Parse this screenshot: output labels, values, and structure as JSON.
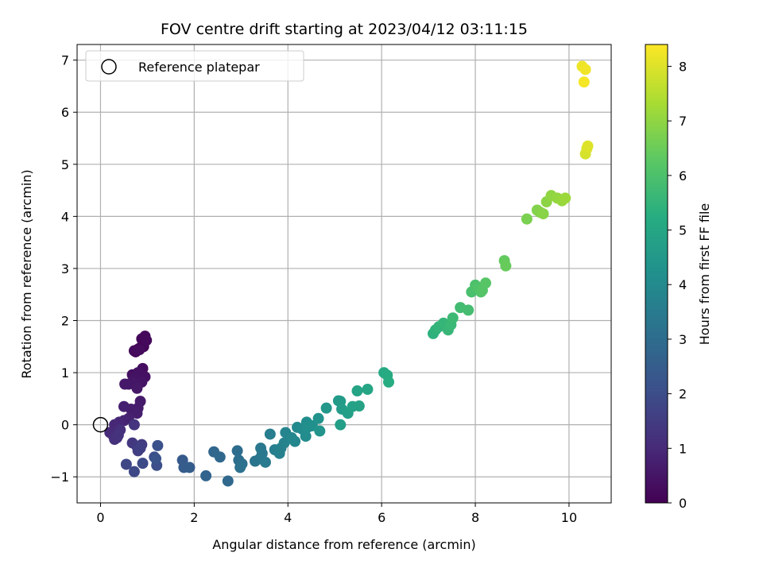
{
  "chart_data": {
    "type": "scatter",
    "title": "FOV centre drift starting at 2023/04/12 03:11:15",
    "xlabel": "Angular distance from reference (arcmin)",
    "ylabel": "Rotation from reference (arcmin)",
    "xlim": [
      -0.5,
      10.9
    ],
    "ylim": [
      -1.5,
      7.3
    ],
    "xticks": [
      0,
      2,
      4,
      6,
      8,
      10
    ],
    "yticks": [
      -1,
      0,
      1,
      2,
      3,
      4,
      5,
      6,
      7
    ],
    "xtick_labels": [
      "0",
      "2",
      "4",
      "6",
      "8",
      "10"
    ],
    "ytick_labels": [
      "−1",
      "0",
      "1",
      "2",
      "3",
      "4",
      "5",
      "6",
      "7"
    ],
    "grid": true,
    "colormap": "viridis",
    "colorbar": {
      "label": "Hours from first FF file",
      "range": [
        0,
        8.4
      ],
      "ticks": [
        0,
        1,
        2,
        3,
        4,
        5,
        6,
        7,
        8
      ],
      "tick_labels": [
        "0",
        "1",
        "2",
        "3",
        "4",
        "5",
        "6",
        "7",
        "8"
      ]
    },
    "legend": {
      "position": "upper-left",
      "entries": [
        {
          "label": "Reference platepar",
          "marker": "open-circle"
        }
      ]
    },
    "reference_point": {
      "x": 0,
      "y": 0
    },
    "points": [
      [
        0.75,
        1.4,
        0.05
      ],
      [
        0.8,
        1.45,
        0.08
      ],
      [
        0.85,
        1.48,
        0.1
      ],
      [
        0.92,
        1.5,
        0.12
      ],
      [
        0.88,
        1.65,
        0.15
      ],
      [
        0.95,
        1.7,
        0.18
      ],
      [
        0.98,
        1.62,
        0.2
      ],
      [
        0.72,
        1.42,
        0.22
      ],
      [
        0.83,
        1.44,
        0.24
      ],
      [
        0.9,
        1.08,
        0.3
      ],
      [
        0.68,
        0.96,
        0.35
      ],
      [
        0.8,
        1.0,
        0.38
      ],
      [
        0.95,
        0.92,
        0.4
      ],
      [
        0.72,
        0.9,
        0.43
      ],
      [
        0.88,
        0.82,
        0.46
      ],
      [
        0.6,
        0.78,
        0.5
      ],
      [
        0.7,
        0.8,
        0.52
      ],
      [
        0.78,
        0.7,
        0.55
      ],
      [
        0.52,
        0.78,
        0.57
      ],
      [
        0.85,
        0.45,
        0.6
      ],
      [
        0.8,
        0.32,
        0.63
      ],
      [
        0.7,
        0.25,
        0.66
      ],
      [
        0.65,
        0.3,
        0.69
      ],
      [
        0.78,
        0.22,
        0.72
      ],
      [
        0.5,
        0.35,
        0.76
      ],
      [
        0.6,
        0.12,
        0.8
      ],
      [
        0.5,
        0.08,
        0.85
      ],
      [
        0.4,
        0.05,
        0.9
      ],
      [
        0.3,
        0.0,
        0.95
      ],
      [
        0.2,
        -0.15,
        1.0
      ],
      [
        0.28,
        -0.22,
        1.05
      ],
      [
        0.35,
        -0.25,
        1.1
      ],
      [
        0.42,
        -0.1,
        1.15
      ],
      [
        0.3,
        -0.28,
        1.2
      ],
      [
        0.38,
        -0.2,
        1.25
      ],
      [
        0.72,
        0.0,
        1.3
      ],
      [
        0.68,
        -0.35,
        1.4
      ],
      [
        0.78,
        -0.42,
        1.45
      ],
      [
        0.88,
        -0.38,
        1.5
      ],
      [
        0.8,
        -0.5,
        1.55
      ],
      [
        0.85,
        -0.45,
        1.6
      ],
      [
        0.55,
        -0.76,
        1.8
      ],
      [
        0.72,
        -0.9,
        1.85
      ],
      [
        0.9,
        -0.74,
        1.9
      ],
      [
        1.15,
        -0.62,
        2.0
      ],
      [
        1.2,
        -0.78,
        2.05
      ],
      [
        1.22,
        -0.4,
        2.1
      ],
      [
        1.18,
        -0.65,
        2.15
      ],
      [
        1.75,
        -0.68,
        2.4
      ],
      [
        1.78,
        -0.82,
        2.45
      ],
      [
        1.9,
        -0.82,
        2.5
      ],
      [
        2.25,
        -0.98,
        2.7
      ],
      [
        2.42,
        -0.52,
        2.8
      ],
      [
        2.55,
        -0.62,
        2.85
      ],
      [
        2.72,
        -1.08,
        2.9
      ],
      [
        2.92,
        -0.5,
        3.0
      ],
      [
        2.95,
        -0.68,
        3.05
      ],
      [
        3.02,
        -0.75,
        3.1
      ],
      [
        2.98,
        -0.82,
        3.15
      ],
      [
        3.3,
        -0.7,
        3.25
      ],
      [
        3.4,
        -0.65,
        3.3
      ],
      [
        3.42,
        -0.45,
        3.35
      ],
      [
        3.45,
        -0.55,
        3.4
      ],
      [
        3.52,
        -0.72,
        3.45
      ],
      [
        3.62,
        -0.18,
        3.55
      ],
      [
        3.72,
        -0.48,
        3.6
      ],
      [
        3.82,
        -0.55,
        3.65
      ],
      [
        3.85,
        -0.45,
        3.7
      ],
      [
        3.92,
        -0.35,
        3.75
      ],
      [
        3.95,
        -0.15,
        3.8
      ],
      [
        4.08,
        -0.25,
        3.85
      ],
      [
        4.15,
        -0.32,
        3.9
      ],
      [
        4.2,
        -0.05,
        3.95
      ],
      [
        4.3,
        -0.08,
        4.0
      ],
      [
        4.38,
        -0.22,
        4.05
      ],
      [
        4.4,
        0.05,
        4.1
      ],
      [
        4.42,
        -0.05,
        4.15
      ],
      [
        4.52,
        -0.02,
        4.2
      ],
      [
        4.65,
        0.12,
        4.3
      ],
      [
        4.68,
        -0.12,
        4.35
      ],
      [
        4.82,
        0.32,
        4.45
      ],
      [
        5.08,
        0.46,
        4.55
      ],
      [
        5.12,
        0.45,
        4.6
      ],
      [
        5.15,
        0.3,
        4.65
      ],
      [
        5.12,
        0.0,
        4.7
      ],
      [
        5.28,
        0.22,
        4.75
      ],
      [
        5.38,
        0.35,
        4.8
      ],
      [
        5.52,
        0.36,
        4.85
      ],
      [
        5.48,
        0.65,
        4.9
      ],
      [
        5.7,
        0.68,
        4.95
      ],
      [
        6.05,
        1.0,
        5.1
      ],
      [
        6.12,
        0.95,
        5.15
      ],
      [
        6.15,
        0.82,
        5.2
      ],
      [
        7.1,
        1.75,
        5.4
      ],
      [
        7.15,
        1.82,
        5.45
      ],
      [
        7.22,
        1.88,
        5.5
      ],
      [
        7.32,
        1.95,
        5.55
      ],
      [
        7.42,
        1.82,
        5.6
      ],
      [
        7.48,
        1.92,
        5.65
      ],
      [
        7.52,
        2.05,
        5.7
      ],
      [
        7.68,
        2.25,
        5.8
      ],
      [
        7.85,
        2.2,
        5.85
      ],
      [
        7.92,
        2.55,
        5.95
      ],
      [
        8.0,
        2.68,
        6.0
      ],
      [
        8.05,
        2.62,
        6.05
      ],
      [
        8.12,
        2.55,
        6.1
      ],
      [
        8.15,
        2.58,
        6.15
      ],
      [
        8.22,
        2.72,
        6.2
      ],
      [
        8.62,
        3.15,
        6.4
      ],
      [
        8.65,
        3.05,
        6.45
      ],
      [
        9.1,
        3.95,
        6.7
      ],
      [
        9.32,
        4.12,
        6.8
      ],
      [
        9.38,
        4.08,
        6.85
      ],
      [
        9.45,
        4.05,
        6.9
      ],
      [
        9.52,
        4.28,
        6.95
      ],
      [
        9.62,
        4.4,
        7.0
      ],
      [
        9.75,
        4.35,
        7.05
      ],
      [
        9.85,
        4.3,
        7.1
      ],
      [
        9.92,
        4.35,
        7.15
      ],
      [
        10.35,
        5.2,
        7.9
      ],
      [
        10.38,
        5.3,
        7.95
      ],
      [
        10.4,
        5.35,
        8.0
      ],
      [
        10.28,
        6.88,
        8.2
      ],
      [
        10.35,
        6.82,
        8.25
      ],
      [
        10.32,
        6.58,
        8.3
      ]
    ]
  }
}
